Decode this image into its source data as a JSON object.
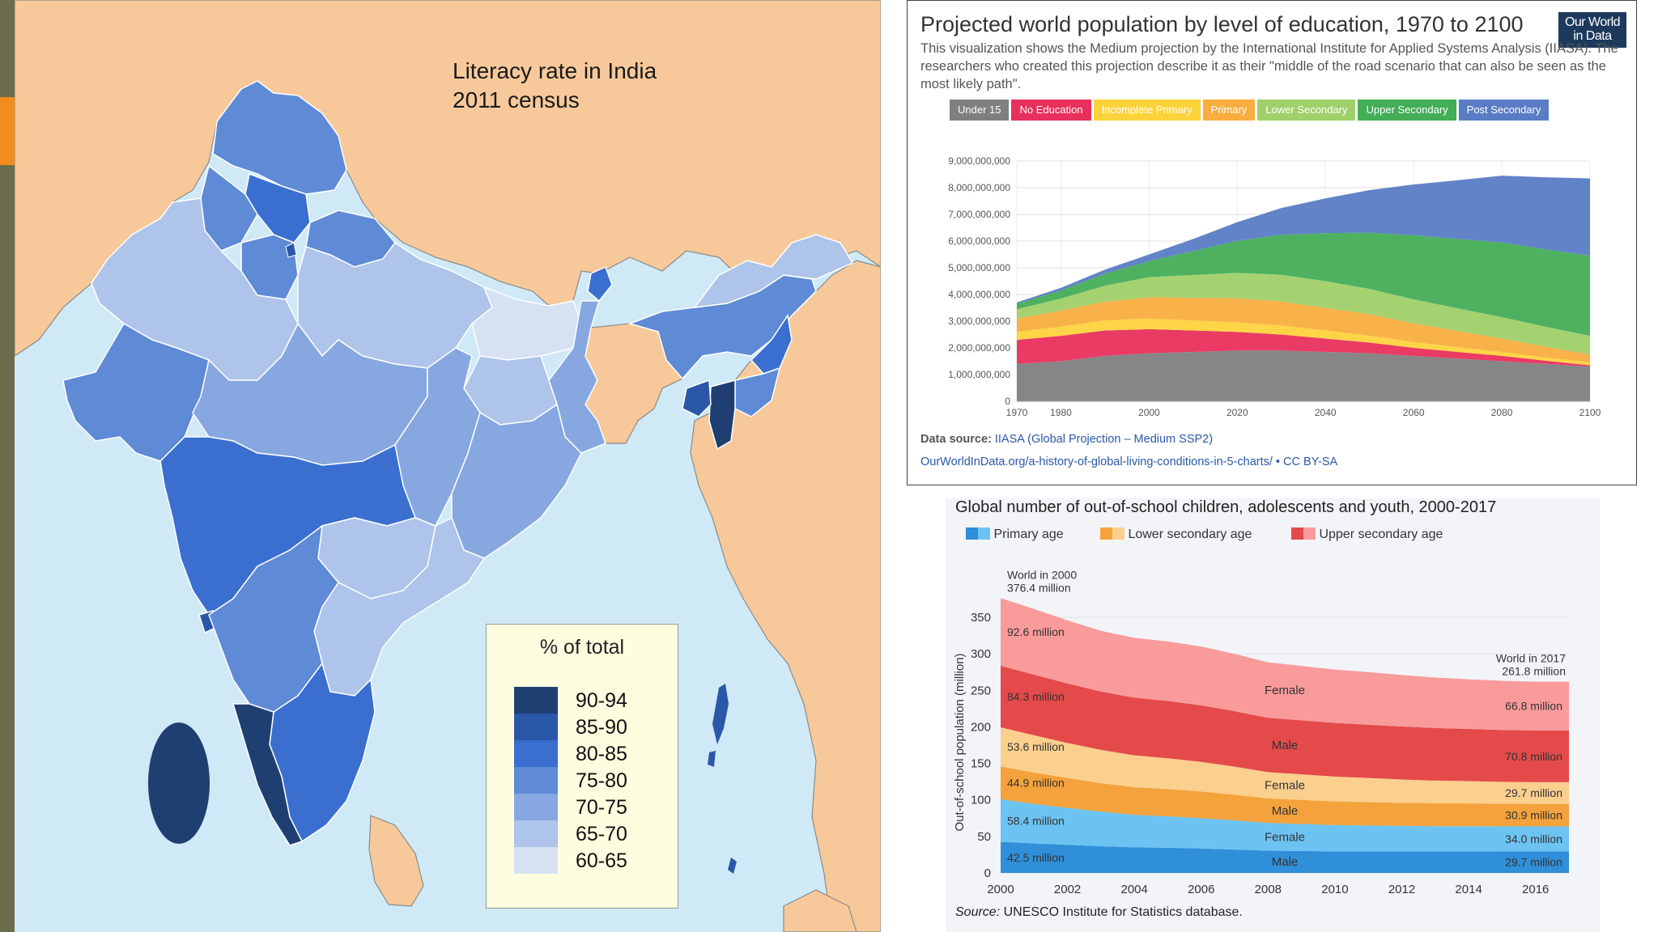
{
  "colors": {
    "sidebar": "#6b6d4c",
    "accent": "#f28c1e",
    "sea": "#cfe9f7",
    "land": "#f7c99a"
  },
  "map": {
    "title_line1": "Literacy rate in India",
    "title_line2": "2011 census",
    "legend_title": "% of total",
    "legend": [
      {
        "label": "90-94",
        "color": "#1f3f73"
      },
      {
        "label": "85-90",
        "color": "#2b57a8"
      },
      {
        "label": "80-85",
        "color": "#3a6fcf"
      },
      {
        "label": "75-80",
        "color": "#5e8ad6"
      },
      {
        "label": "70-75",
        "color": "#87a7e0"
      },
      {
        "label": "65-70",
        "color": "#aec4ea"
      },
      {
        "label": "60-65",
        "color": "#d6e1f4"
      }
    ]
  },
  "chart_data": [
    {
      "type": "area",
      "stacked": true,
      "title": "Projected world population by level of education, 1970 to 2100",
      "logo_line1": "Our World",
      "logo_line2": "in Data",
      "description": "This visualization shows the Medium projection by the International Institute for Applied Systems Analysis (IIASA). The researchers who created this projection describe it as their \"middle of the road scenario that can also be seen as the most likely path\".",
      "source_label": "Data source:",
      "source_link": "IIASA (Global Projection – Medium SSP2)",
      "url": "OurWorldInData.org/a-history-of-global-living-conditions-in-5-charts/ • CC BY-SA",
      "x": [
        1970,
        1980,
        1990,
        2000,
        2010,
        2020,
        2030,
        2040,
        2050,
        2060,
        2070,
        2080,
        2090,
        2100
      ],
      "x_ticks": [
        1970,
        1980,
        2000,
        2020,
        2040,
        2060,
        2080,
        2100
      ],
      "y_ticks": [
        "0",
        "1,000,000,000",
        "2,000,000,000",
        "3,000,000,000",
        "4,000,000,000",
        "5,000,000,000",
        "6,000,000,000",
        "7,000,000,000",
        "8,000,000,000",
        "9,000,000,000"
      ],
      "ylim": [
        0,
        9000000000
      ],
      "series": [
        {
          "name": "Under 15",
          "color": "#7f7f7f",
          "values": [
            1.4,
            1.5,
            1.7,
            1.8,
            1.85,
            1.9,
            1.9,
            1.85,
            1.8,
            1.7,
            1.6,
            1.5,
            1.4,
            1.3
          ]
        },
        {
          "name": "No Education",
          "color": "#e8305c",
          "values": [
            0.9,
            0.95,
            0.95,
            0.9,
            0.8,
            0.7,
            0.6,
            0.5,
            0.4,
            0.3,
            0.25,
            0.2,
            0.12,
            0.05
          ]
        },
        {
          "name": "Incomplete Primary",
          "color": "#fdd33c",
          "values": [
            0.3,
            0.35,
            0.38,
            0.4,
            0.38,
            0.36,
            0.34,
            0.3,
            0.26,
            0.22,
            0.18,
            0.15,
            0.12,
            0.1
          ]
        },
        {
          "name": "Primary",
          "color": "#f9ad3f",
          "values": [
            0.5,
            0.6,
            0.7,
            0.8,
            0.85,
            0.9,
            0.9,
            0.85,
            0.8,
            0.7,
            0.6,
            0.5,
            0.4,
            0.3
          ]
        },
        {
          "name": "Lower Secondary",
          "color": "#9fd069",
          "values": [
            0.35,
            0.45,
            0.6,
            0.75,
            0.85,
            0.95,
            1.0,
            1.0,
            0.95,
            0.9,
            0.85,
            0.8,
            0.75,
            0.7
          ]
        },
        {
          "name": "Upper Secondary",
          "color": "#43ad57",
          "values": [
            0.2,
            0.3,
            0.45,
            0.6,
            0.9,
            1.2,
            1.5,
            1.8,
            2.1,
            2.4,
            2.6,
            2.8,
            2.9,
            3.0
          ]
        },
        {
          "name": "Post Secondary",
          "color": "#5a7cc5",
          "values": [
            0.05,
            0.1,
            0.15,
            0.25,
            0.45,
            0.7,
            1.0,
            1.3,
            1.6,
            1.9,
            2.2,
            2.5,
            2.7,
            2.9
          ]
        }
      ],
      "units": "billions"
    },
    {
      "type": "area",
      "stacked": true,
      "title": "Global number of out-of-school children, adolescents and youth, 2000-2017",
      "ylabel": "Out-of-school population (million)",
      "ylim": [
        0,
        380
      ],
      "y_ticks": [
        0,
        50,
        100,
        150,
        200,
        250,
        300,
        350
      ],
      "x": [
        2000,
        2001,
        2002,
        2003,
        2004,
        2005,
        2006,
        2007,
        2008,
        2009,
        2010,
        2011,
        2012,
        2013,
        2014,
        2015,
        2016,
        2017
      ],
      "x_ticks": [
        2000,
        2002,
        2004,
        2006,
        2008,
        2010,
        2012,
        2014,
        2016
      ],
      "legend": [
        {
          "label": "Primary age",
          "color1": "#2f8fd8",
          "color2": "#6cc3f2"
        },
        {
          "label": "Lower secondary age",
          "color1": "#f4a23c",
          "color2": "#fbcf8e"
        },
        {
          "label": "Upper secondary age",
          "color1": "#e44a4a",
          "color2": "#f99b9b"
        }
      ],
      "series": [
        {
          "name": "Primary age — Male",
          "color": "#2f8fd8",
          "values": [
            42.5,
            40.5,
            38.5,
            36.5,
            35,
            34.5,
            33.5,
            32,
            30.5,
            30,
            29.5,
            29.5,
            29.5,
            29.5,
            29.5,
            29.6,
            29.7,
            29.7
          ]
        },
        {
          "name": "Primary age — Female",
          "color": "#6cc3f2",
          "values": [
            58.4,
            54,
            50.5,
            47.5,
            44.5,
            43,
            41.5,
            40,
            38,
            37,
            36,
            35.5,
            35,
            34.5,
            34.5,
            34.2,
            34.0,
            34.0
          ]
        },
        {
          "name": "Lower secondary age — Male",
          "color": "#f4a23c",
          "values": [
            44.9,
            43,
            41,
            39,
            38,
            37.5,
            36.5,
            35,
            33.5,
            33,
            32.5,
            32,
            31.5,
            31.5,
            31.2,
            31,
            30.9,
            30.9
          ]
        },
        {
          "name": "Lower secondary age — Female",
          "color": "#fbcf8e",
          "values": [
            53.6,
            51,
            48,
            45.5,
            43.5,
            42,
            40.5,
            38.5,
            36,
            35,
            34,
            33,
            32,
            31,
            30.5,
            30,
            29.7,
            29.7
          ]
        },
        {
          "name": "Upper secondary age — Male",
          "color": "#e44a4a",
          "values": [
            84.3,
            83,
            81.5,
            80,
            79,
            78.5,
            77.5,
            76,
            74.5,
            74,
            73.5,
            73,
            72.5,
            72,
            71.5,
            71,
            70.8,
            70.8
          ]
        },
        {
          "name": "Upper secondary age — Female",
          "color": "#f99b9b",
          "values": [
            92.6,
            90,
            86.5,
            83,
            82,
            81.5,
            80.5,
            78.5,
            76,
            74.5,
            73,
            72,
            70.5,
            69,
            68,
            67.3,
            66.8,
            66.8
          ]
        }
      ],
      "labels_left": [
        "92.6 million",
        "84.3 million",
        "53.6 million",
        "44.9 million",
        "58.4 million",
        "42.5 million"
      ],
      "labels_right": [
        "66.8 million",
        "70.8 million",
        "29.7 million",
        "30.9 million",
        "34.0 million",
        "29.7 million"
      ],
      "labels_mid": [
        "Female",
        "Male",
        "Female",
        "Male",
        "Female",
        "Male"
      ],
      "annotation_start": [
        "World in 2000",
        "376.4 million"
      ],
      "annotation_end": [
        "World in 2017",
        "261.8 million"
      ],
      "source_label": "Source:",
      "source_text": "UNESCO Institute for Statistics database."
    }
  ]
}
